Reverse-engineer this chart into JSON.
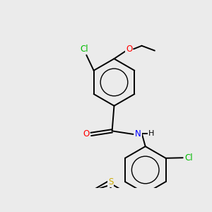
{
  "background_color": "#ebebeb",
  "bond_color": "#000000",
  "atom_colors": {
    "Cl": "#00bb00",
    "O": "#ff0000",
    "N": "#0000ff",
    "S": "#ccaa00",
    "H": "#000000",
    "C": "#000000"
  },
  "figsize": [
    3.0,
    3.0
  ],
  "dpi": 100,
  "bond_lw": 1.4,
  "font_size": 8.5
}
